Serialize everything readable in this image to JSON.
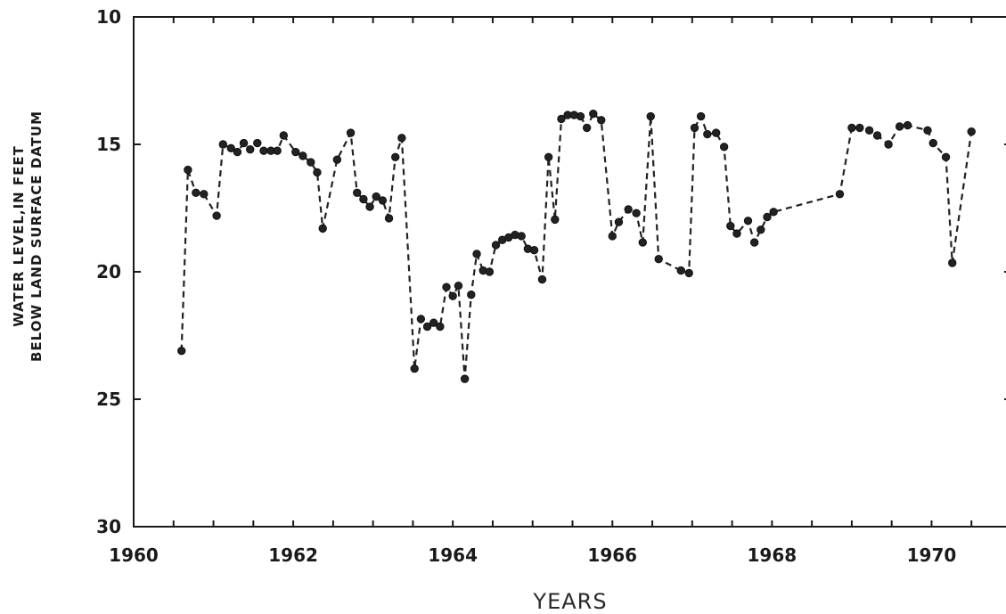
{
  "chart_data": {
    "type": "line",
    "title": "",
    "xlabel": "YEARS",
    "ylabel_lines": [
      "WATER LEVEL,IN FEET",
      "BELOW LAND SURFACE DATUM"
    ],
    "xlim": [
      1960,
      1971.0
    ],
    "ylim": [
      30,
      10
    ],
    "y_inverted": true,
    "x_ticks": [
      "1960",
      "1962",
      "1964",
      "1966",
      "1968",
      "1970"
    ],
    "x_tick_values": [
      1960,
      1962,
      1964,
      1966,
      1968,
      1970
    ],
    "y_ticks": [
      "10",
      "15",
      "20",
      "25",
      "30"
    ],
    "y_tick_values": [
      10,
      15,
      20,
      25,
      30
    ],
    "grid": false,
    "series": [
      {
        "line_style": "dashed",
        "marker": "circle",
        "points": [
          [
            1960.6,
            23.1
          ],
          [
            1960.68,
            16.0
          ],
          [
            1960.78,
            16.9
          ],
          [
            1960.88,
            16.95
          ],
          [
            1961.04,
            17.8
          ],
          [
            1961.12,
            15.0
          ],
          [
            1961.22,
            15.15
          ],
          [
            1961.3,
            15.3
          ],
          [
            1961.38,
            14.95
          ],
          [
            1961.46,
            15.2
          ],
          [
            1961.55,
            14.95
          ],
          [
            1961.63,
            15.25
          ],
          [
            1961.72,
            15.25
          ],
          [
            1961.8,
            15.25
          ],
          [
            1961.88,
            14.65
          ],
          [
            1962.03,
            15.3
          ],
          [
            1962.12,
            15.45
          ],
          [
            1962.22,
            15.7
          ],
          [
            1962.3,
            16.1
          ],
          [
            1962.37,
            18.3
          ],
          [
            1962.55,
            15.6
          ],
          [
            1962.72,
            14.55
          ],
          [
            1962.8,
            16.9
          ],
          [
            1962.88,
            17.15
          ],
          [
            1962.96,
            17.45
          ],
          [
            1963.04,
            17.05
          ],
          [
            1963.12,
            17.2
          ],
          [
            1963.2,
            17.9
          ],
          [
            1963.28,
            15.5
          ],
          [
            1963.36,
            14.75
          ],
          [
            1963.52,
            23.8
          ],
          [
            1963.6,
            21.85
          ],
          [
            1963.68,
            22.15
          ],
          [
            1963.76,
            22.0
          ],
          [
            1963.84,
            22.15
          ],
          [
            1963.92,
            20.6
          ],
          [
            1964.0,
            20.95
          ],
          [
            1964.07,
            20.55
          ],
          [
            1964.15,
            24.2
          ],
          [
            1964.23,
            20.9
          ],
          [
            1964.3,
            19.3
          ],
          [
            1964.38,
            19.95
          ],
          [
            1964.46,
            20.0
          ],
          [
            1964.54,
            18.95
          ],
          [
            1964.62,
            18.75
          ],
          [
            1964.7,
            18.65
          ],
          [
            1964.78,
            18.55
          ],
          [
            1964.86,
            18.6
          ],
          [
            1964.94,
            19.1
          ],
          [
            1965.02,
            19.15
          ],
          [
            1965.12,
            20.3
          ],
          [
            1965.2,
            15.5
          ],
          [
            1965.28,
            17.95
          ],
          [
            1965.36,
            14.0
          ],
          [
            1965.44,
            13.85
          ],
          [
            1965.52,
            13.85
          ],
          [
            1965.6,
            13.9
          ],
          [
            1965.68,
            14.35
          ],
          [
            1965.76,
            13.8
          ],
          [
            1965.86,
            14.05
          ],
          [
            1966.0,
            18.6
          ],
          [
            1966.08,
            18.05
          ],
          [
            1966.2,
            17.55
          ],
          [
            1966.3,
            17.7
          ],
          [
            1966.38,
            18.85
          ],
          [
            1966.48,
            13.9
          ],
          [
            1966.58,
            19.5
          ],
          [
            1966.86,
            19.95
          ],
          [
            1966.96,
            20.05
          ],
          [
            1967.03,
            14.35
          ],
          [
            1967.11,
            13.9
          ],
          [
            1967.19,
            14.6
          ],
          [
            1967.3,
            14.55
          ],
          [
            1967.4,
            15.1
          ],
          [
            1967.48,
            18.2
          ],
          [
            1967.56,
            18.5
          ],
          [
            1967.7,
            18.0
          ],
          [
            1967.78,
            18.85
          ],
          [
            1967.86,
            18.35
          ],
          [
            1967.94,
            17.85
          ],
          [
            1968.02,
            17.65
          ],
          [
            1968.85,
            16.95
          ],
          [
            1969.0,
            14.35
          ],
          [
            1969.1,
            14.35
          ],
          [
            1969.22,
            14.45
          ],
          [
            1969.32,
            14.65
          ],
          [
            1969.46,
            15.0
          ],
          [
            1969.6,
            14.3
          ],
          [
            1969.7,
            14.25
          ],
          [
            1969.95,
            14.45
          ],
          [
            1970.02,
            14.95
          ],
          [
            1970.18,
            15.5
          ],
          [
            1970.26,
            19.65
          ],
          [
            1970.5,
            14.5
          ]
        ]
      }
    ]
  }
}
